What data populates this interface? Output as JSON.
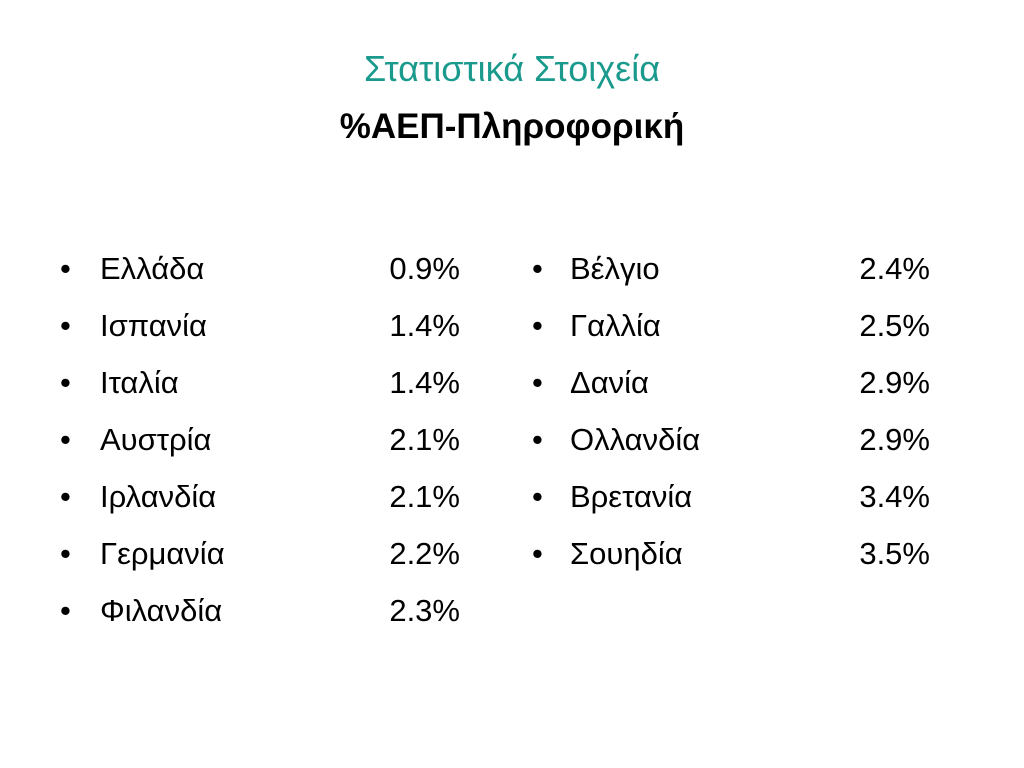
{
  "header": {
    "title": "Στατιστικά Στοιχεία",
    "subtitle": "%ΑΕΠ-Πληροφορική"
  },
  "columns": [
    [
      {
        "name": "Ελλάδα",
        "value": "0.9%"
      },
      {
        "name": "Ισπανία",
        "value": "1.4%"
      },
      {
        "name": "Ιταλία",
        "value": "1.4%"
      },
      {
        "name": "Αυστρία",
        "value": "2.1%"
      },
      {
        "name": "Ιρλανδία",
        "value": "2.1%"
      },
      {
        "name": "Γερμανία",
        "value": "2.2%"
      },
      {
        "name": "Φιλανδία",
        "value": "2.3%"
      }
    ],
    [
      {
        "name": "Βέλγιο",
        "value": "2.4%"
      },
      {
        "name": "Γαλλία",
        "value": "2.5%"
      },
      {
        "name": "Δανία",
        "value": "2.9%"
      },
      {
        "name": "Ολλανδία",
        "value": "2.9%"
      },
      {
        "name": "Βρετανία",
        "value": "3.4%"
      },
      {
        "name": "Σουηδία",
        "value": "3.5%"
      }
    ]
  ]
}
